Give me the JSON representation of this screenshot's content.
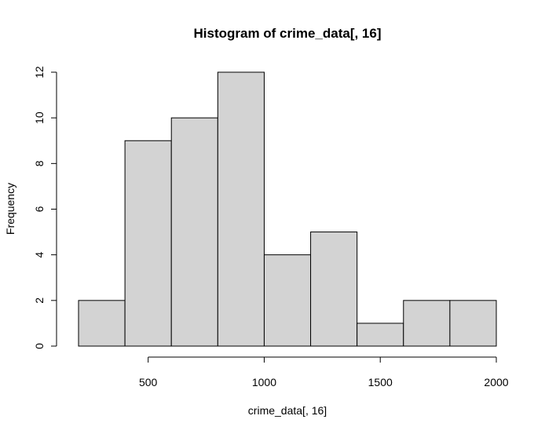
{
  "chart_data": {
    "type": "bar",
    "subtype": "histogram",
    "title": "Histogram of crime_data[, 16]",
    "xlabel": "crime_data[, 16]",
    "ylabel": "Frequency",
    "bins": [
      {
        "start": 200,
        "end": 400,
        "count": 2
      },
      {
        "start": 400,
        "end": 600,
        "count": 9
      },
      {
        "start": 600,
        "end": 800,
        "count": 10
      },
      {
        "start": 800,
        "end": 1000,
        "count": 12
      },
      {
        "start": 1000,
        "end": 1200,
        "count": 4
      },
      {
        "start": 1200,
        "end": 1400,
        "count": 5
      },
      {
        "start": 1400,
        "end": 1600,
        "count": 1
      },
      {
        "start": 1600,
        "end": 1800,
        "count": 2
      },
      {
        "start": 1800,
        "end": 2000,
        "count": 2
      }
    ],
    "xlim": [
      200,
      2000
    ],
    "ylim": [
      0,
      12
    ],
    "x_ticks": [
      500,
      1000,
      1500,
      2000
    ],
    "y_ticks": [
      0,
      2,
      4,
      6,
      8,
      10,
      12
    ],
    "grid": false,
    "bar_fill": "#d3d3d3",
    "bar_stroke": "#000000"
  }
}
